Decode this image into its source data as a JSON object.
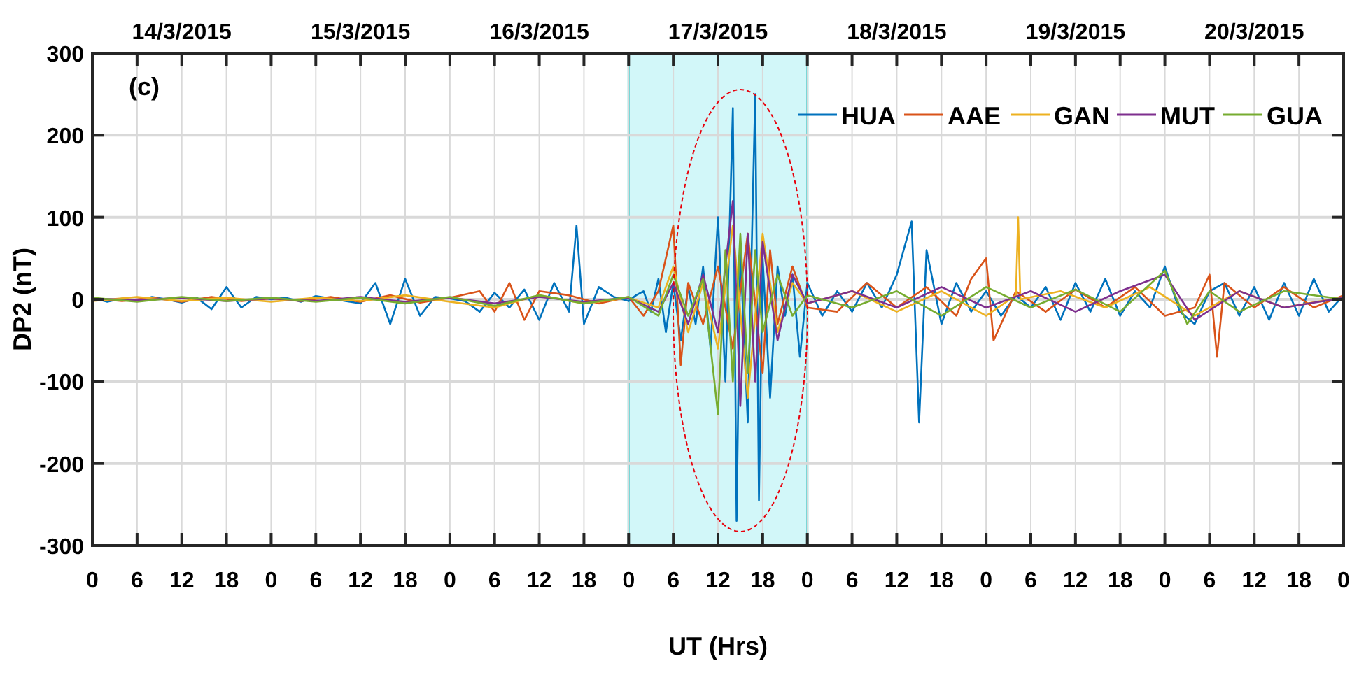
{
  "chart_data": {
    "type": "line",
    "xlabel": "UT (Hrs)",
    "ylabel": "DP2 (nT)",
    "annotations": [
      "(c)"
    ],
    "xlim": [
      "2015-03-14T00:00",
      "2015-03-21T00:00"
    ],
    "ylim": [
      -300,
      300
    ],
    "xticks": [
      {
        "value": "2015-03-14T00:00",
        "label": "0"
      },
      {
        "value": "2015-03-14T06:00",
        "label": "6"
      },
      {
        "value": "2015-03-14T12:00",
        "label": "12"
      },
      {
        "value": "2015-03-14T18:00",
        "label": "18"
      },
      {
        "value": "2015-03-15T00:00",
        "label": "0"
      },
      {
        "value": "2015-03-15T06:00",
        "label": "6"
      },
      {
        "value": "2015-03-15T12:00",
        "label": "12"
      },
      {
        "value": "2015-03-15T18:00",
        "label": "18"
      },
      {
        "value": "2015-03-16T00:00",
        "label": "0"
      },
      {
        "value": "2015-03-16T06:00",
        "label": "6"
      },
      {
        "value": "2015-03-16T12:00",
        "label": "12"
      },
      {
        "value": "2015-03-16T18:00",
        "label": "18"
      },
      {
        "value": "2015-03-17T00:00",
        "label": "0"
      },
      {
        "value": "2015-03-17T06:00",
        "label": "6"
      },
      {
        "value": "2015-03-17T12:00",
        "label": "12"
      },
      {
        "value": "2015-03-17T18:00",
        "label": "18"
      },
      {
        "value": "2015-03-18T00:00",
        "label": "0"
      },
      {
        "value": "2015-03-18T06:00",
        "label": "6"
      },
      {
        "value": "2015-03-18T12:00",
        "label": "12"
      },
      {
        "value": "2015-03-18T18:00",
        "label": "18"
      },
      {
        "value": "2015-03-19T00:00",
        "label": "0"
      },
      {
        "value": "2015-03-19T06:00",
        "label": "6"
      },
      {
        "value": "2015-03-19T12:00",
        "label": "12"
      },
      {
        "value": "2015-03-19T18:00",
        "label": "18"
      },
      {
        "value": "2015-03-20T00:00",
        "label": "0"
      },
      {
        "value": "2015-03-20T06:00",
        "label": "6"
      },
      {
        "value": "2015-03-20T12:00",
        "label": "12"
      },
      {
        "value": "2015-03-20T18:00",
        "label": "18"
      },
      {
        "value": "2015-03-21T00:00",
        "label": "0"
      }
    ],
    "x2lim": [
      "2015-03-14T00:00",
      "2015-03-21T00:00"
    ],
    "x2ticks": [
      {
        "value": "2015-03-14T12:00",
        "label": "14/3/2015"
      },
      {
        "value": "2015-03-15T12:00",
        "label": "15/3/2015"
      },
      {
        "value": "2015-03-16T12:00",
        "label": "16/3/2015"
      },
      {
        "value": "2015-03-17T12:00",
        "label": "17/3/2015"
      },
      {
        "value": "2015-03-18T12:00",
        "label": "18/3/2015"
      },
      {
        "value": "2015-03-19T12:00",
        "label": "19/3/2015"
      },
      {
        "value": "2015-03-20T12:00",
        "label": "20/3/2015"
      }
    ],
    "yticks": [
      -300,
      -200,
      -100,
      0,
      100,
      200,
      300
    ],
    "grid": true,
    "legend": "top right",
    "line_style": "solid",
    "bands": [
      {
        "axis": "x",
        "from": "2015-03-17T00:00",
        "to": "2015-03-18T00:00",
        "color": "#d2f7f9"
      }
    ],
    "series": [
      {
        "name": "HUA",
        "color": "#0072bd",
        "x": [
          "2015-03-14T00:00",
          "2015-03-14T02:00",
          "2015-03-14T04:00",
          "2015-03-14T06:00",
          "2015-03-14T08:00",
          "2015-03-14T10:00",
          "2015-03-14T12:00",
          "2015-03-14T14:00",
          "2015-03-14T16:00",
          "2015-03-14T18:00",
          "2015-03-14T20:00",
          "2015-03-14T22:00",
          "2015-03-15T00:00",
          "2015-03-15T02:00",
          "2015-03-15T04:00",
          "2015-03-15T06:00",
          "2015-03-15T08:00",
          "2015-03-15T10:00",
          "2015-03-15T12:00",
          "2015-03-15T14:00",
          "2015-03-15T16:00",
          "2015-03-15T18:00",
          "2015-03-15T20:00",
          "2015-03-15T22:00",
          "2015-03-16T00:00",
          "2015-03-16T02:00",
          "2015-03-16T04:00",
          "2015-03-16T06:00",
          "2015-03-16T08:00",
          "2015-03-16T10:00",
          "2015-03-16T12:00",
          "2015-03-16T14:00",
          "2015-03-16T16:00",
          "2015-03-16T17:00",
          "2015-03-16T18:00",
          "2015-03-16T20:00",
          "2015-03-16T22:00",
          "2015-03-17T00:00",
          "2015-03-17T01:00",
          "2015-03-17T02:00",
          "2015-03-17T03:00",
          "2015-03-17T04:00",
          "2015-03-17T05:00",
          "2015-03-17T06:00",
          "2015-03-17T07:00",
          "2015-03-17T08:00",
          "2015-03-17T09:00",
          "2015-03-17T10:00",
          "2015-03-17T11:00",
          "2015-03-17T12:00",
          "2015-03-17T13:00",
          "2015-03-17T14:00",
          "2015-03-17T14:30",
          "2015-03-17T15:00",
          "2015-03-17T16:00",
          "2015-03-17T17:00",
          "2015-03-17T17:30",
          "2015-03-17T18:00",
          "2015-03-17T19:00",
          "2015-03-17T20:00",
          "2015-03-17T21:00",
          "2015-03-17T22:00",
          "2015-03-17T23:00",
          "2015-03-18T00:00",
          "2015-03-18T02:00",
          "2015-03-18T04:00",
          "2015-03-18T06:00",
          "2015-03-18T08:00",
          "2015-03-18T10:00",
          "2015-03-18T12:00",
          "2015-03-18T14:00",
          "2015-03-18T15:00",
          "2015-03-18T16:00",
          "2015-03-18T18:00",
          "2015-03-18T20:00",
          "2015-03-18T22:00",
          "2015-03-19T00:00",
          "2015-03-19T02:00",
          "2015-03-19T04:00",
          "2015-03-19T06:00",
          "2015-03-19T08:00",
          "2015-03-19T10:00",
          "2015-03-19T12:00",
          "2015-03-19T14:00",
          "2015-03-19T16:00",
          "2015-03-19T18:00",
          "2015-03-19T20:00",
          "2015-03-19T22:00",
          "2015-03-20T00:00",
          "2015-03-20T02:00",
          "2015-03-20T04:00",
          "2015-03-20T06:00",
          "2015-03-20T08:00",
          "2015-03-20T10:00",
          "2015-03-20T12:00",
          "2015-03-20T14:00",
          "2015-03-20T16:00",
          "2015-03-20T18:00",
          "2015-03-20T20:00",
          "2015-03-20T22:00",
          "2015-03-21T00:00"
        ],
        "values": [
          2,
          -3,
          1,
          -2,
          3,
          0,
          -4,
          2,
          -12,
          15,
          -10,
          3,
          0,
          2,
          -3,
          4,
          1,
          -2,
          -5,
          20,
          -30,
          25,
          -20,
          3,
          1,
          -2,
          -15,
          8,
          -10,
          12,
          -25,
          20,
          -15,
          90,
          -30,
          15,
          3,
          -2,
          5,
          10,
          -15,
          25,
          -40,
          20,
          -50,
          15,
          -30,
          40,
          -60,
          100,
          -100,
          233,
          -270,
          60,
          -150,
          250,
          -245,
          50,
          -120,
          40,
          -20,
          30,
          -70,
          20,
          -20,
          10,
          -15,
          20,
          -10,
          30,
          95,
          -150,
          60,
          -30,
          20,
          -15,
          10,
          -20,
          5,
          -10,
          15,
          -25,
          20,
          -15,
          25,
          -20,
          10,
          -10,
          40,
          -15,
          -30,
          10,
          20,
          -20,
          15,
          -25,
          20,
          -20,
          25,
          -15,
          5
        ]
      },
      {
        "name": "AAE",
        "color": "#d95319",
        "x": [
          "2015-03-14T00:00",
          "2015-03-14T04:00",
          "2015-03-14T08:00",
          "2015-03-14T12:00",
          "2015-03-14T16:00",
          "2015-03-14T20:00",
          "2015-03-15T00:00",
          "2015-03-15T04:00",
          "2015-03-15T08:00",
          "2015-03-15T12:00",
          "2015-03-15T16:00",
          "2015-03-15T20:00",
          "2015-03-16T00:00",
          "2015-03-16T04:00",
          "2015-03-16T06:00",
          "2015-03-16T08:00",
          "2015-03-16T10:00",
          "2015-03-16T12:00",
          "2015-03-16T16:00",
          "2015-03-16T20:00",
          "2015-03-17T00:00",
          "2015-03-17T02:00",
          "2015-03-17T04:00",
          "2015-03-17T06:00",
          "2015-03-17T07:00",
          "2015-03-17T08:00",
          "2015-03-17T10:00",
          "2015-03-17T12:00",
          "2015-03-17T14:00",
          "2015-03-17T16:00",
          "2015-03-17T18:00",
          "2015-03-17T19:00",
          "2015-03-17T20:00",
          "2015-03-17T22:00",
          "2015-03-18T00:00",
          "2015-03-18T04:00",
          "2015-03-18T08:00",
          "2015-03-18T12:00",
          "2015-03-18T16:00",
          "2015-03-18T20:00",
          "2015-03-18T22:00",
          "2015-03-19T00:00",
          "2015-03-19T01:00",
          "2015-03-19T04:00",
          "2015-03-19T08:00",
          "2015-03-19T12:00",
          "2015-03-19T16:00",
          "2015-03-19T20:00",
          "2015-03-20T00:00",
          "2015-03-20T04:00",
          "2015-03-20T06:00",
          "2015-03-20T07:00",
          "2015-03-20T08:00",
          "2015-03-20T12:00",
          "2015-03-20T16:00",
          "2015-03-20T20:00",
          "2015-03-21T00:00"
        ],
        "values": [
          1,
          -2,
          2,
          -3,
          3,
          -2,
          1,
          -2,
          3,
          -3,
          5,
          -4,
          2,
          10,
          -15,
          20,
          -25,
          10,
          5,
          -5,
          3,
          -20,
          10,
          90,
          -80,
          20,
          -30,
          40,
          -60,
          80,
          -90,
          60,
          -30,
          40,
          -10,
          -15,
          20,
          -10,
          15,
          -20,
          25,
          50,
          -50,
          10,
          -15,
          12,
          -10,
          15,
          -20,
          -10,
          30,
          -70,
          20,
          -10,
          15,
          -10,
          5
        ]
      },
      {
        "name": "GAN",
        "color": "#edb120",
        "x": [
          "2015-03-14T00:00",
          "2015-03-14T06:00",
          "2015-03-14T12:00",
          "2015-03-14T18:00",
          "2015-03-15T00:00",
          "2015-03-15T06:00",
          "2015-03-15T12:00",
          "2015-03-15T18:00",
          "2015-03-16T00:00",
          "2015-03-16T06:00",
          "2015-03-16T12:00",
          "2015-03-16T18:00",
          "2015-03-17T00:00",
          "2015-03-17T04:00",
          "2015-03-17T06:00",
          "2015-03-17T08:00",
          "2015-03-17T10:00",
          "2015-03-17T12:00",
          "2015-03-17T14:00",
          "2015-03-17T16:00",
          "2015-03-17T18:00",
          "2015-03-17T20:00",
          "2015-03-17T22:00",
          "2015-03-18T00:00",
          "2015-03-18T06:00",
          "2015-03-18T12:00",
          "2015-03-18T18:00",
          "2015-03-19T00:00",
          "2015-03-19T04:00",
          "2015-03-19T04:18",
          "2015-03-19T04:36",
          "2015-03-19T10:00",
          "2015-03-19T16:00",
          "2015-03-19T22:00",
          "2015-03-20T04:00",
          "2015-03-20T10:00",
          "2015-03-20T16:00",
          "2015-03-21T00:00"
        ],
        "values": [
          -2,
          3,
          -2,
          2,
          -3,
          2,
          -2,
          5,
          -3,
          -10,
          5,
          -5,
          2,
          -10,
          40,
          -40,
          20,
          -60,
          90,
          -120,
          80,
          -40,
          20,
          -5,
          10,
          -15,
          10,
          -20,
          5,
          100,
          0,
          10,
          -10,
          15,
          -20,
          10,
          -10,
          3
        ]
      },
      {
        "name": "MUT",
        "color": "#7e2f8e",
        "x": [
          "2015-03-14T00:00",
          "2015-03-14T06:00",
          "2015-03-14T12:00",
          "2015-03-14T18:00",
          "2015-03-15T00:00",
          "2015-03-15T06:00",
          "2015-03-15T12:00",
          "2015-03-15T18:00",
          "2015-03-16T00:00",
          "2015-03-16T06:00",
          "2015-03-16T12:00",
          "2015-03-16T18:00",
          "2015-03-17T00:00",
          "2015-03-17T04:00",
          "2015-03-17T06:00",
          "2015-03-17T08:00",
          "2015-03-17T10:00",
          "2015-03-17T12:00",
          "2015-03-17T14:00",
          "2015-03-17T15:00",
          "2015-03-17T16:00",
          "2015-03-17T17:00",
          "2015-03-17T18:00",
          "2015-03-17T20:00",
          "2015-03-17T22:00",
          "2015-03-18T00:00",
          "2015-03-18T06:00",
          "2015-03-18T12:00",
          "2015-03-18T18:00",
          "2015-03-19T00:00",
          "2015-03-19T06:00",
          "2015-03-19T12:00",
          "2015-03-19T18:00",
          "2015-03-20T00:00",
          "2015-03-20T04:00",
          "2015-03-20T10:00",
          "2015-03-20T16:00",
          "2015-03-21T00:00"
        ],
        "values": [
          1,
          -1,
          2,
          -2,
          1,
          -2,
          3,
          -3,
          2,
          -5,
          3,
          -3,
          2,
          -15,
          20,
          -30,
          30,
          -40,
          120,
          -130,
          80,
          -100,
          70,
          -50,
          30,
          -5,
          10,
          -10,
          15,
          -10,
          10,
          -15,
          10,
          30,
          -25,
          10,
          -10,
          2
        ]
      },
      {
        "name": "GUA",
        "color": "#77ac30",
        "x": [
          "2015-03-14T00:00",
          "2015-03-14T06:00",
          "2015-03-14T12:00",
          "2015-03-14T18:00",
          "2015-03-15T00:00",
          "2015-03-15T06:00",
          "2015-03-15T12:00",
          "2015-03-15T18:00",
          "2015-03-16T00:00",
          "2015-03-16T06:00",
          "2015-03-16T12:00",
          "2015-03-16T18:00",
          "2015-03-17T00:00",
          "2015-03-17T04:00",
          "2015-03-17T06:00",
          "2015-03-17T08:00",
          "2015-03-17T10:00",
          "2015-03-17T12:00",
          "2015-03-17T13:00",
          "2015-03-17T14:00",
          "2015-03-17T15:00",
          "2015-03-17T16:00",
          "2015-03-17T17:00",
          "2015-03-17T18:00",
          "2015-03-17T20:00",
          "2015-03-17T22:00",
          "2015-03-18T00:00",
          "2015-03-18T06:00",
          "2015-03-18T12:00",
          "2015-03-18T18:00",
          "2015-03-19T00:00",
          "2015-03-19T06:00",
          "2015-03-19T12:00",
          "2015-03-19T18:00",
          "2015-03-20T00:00",
          "2015-03-20T03:00",
          "2015-03-20T06:00",
          "2015-03-20T10:00",
          "2015-03-20T16:00",
          "2015-03-21T00:00"
        ],
        "values": [
          2,
          -3,
          3,
          -2,
          2,
          -3,
          2,
          -5,
          3,
          -8,
          5,
          -5,
          3,
          -20,
          30,
          -20,
          25,
          -140,
          60,
          -100,
          80,
          -90,
          60,
          -40,
          30,
          -20,
          5,
          -10,
          10,
          -20,
          15,
          -10,
          12,
          -15,
          35,
          -30,
          10,
          -15,
          10,
          0
        ]
      }
    ]
  }
}
